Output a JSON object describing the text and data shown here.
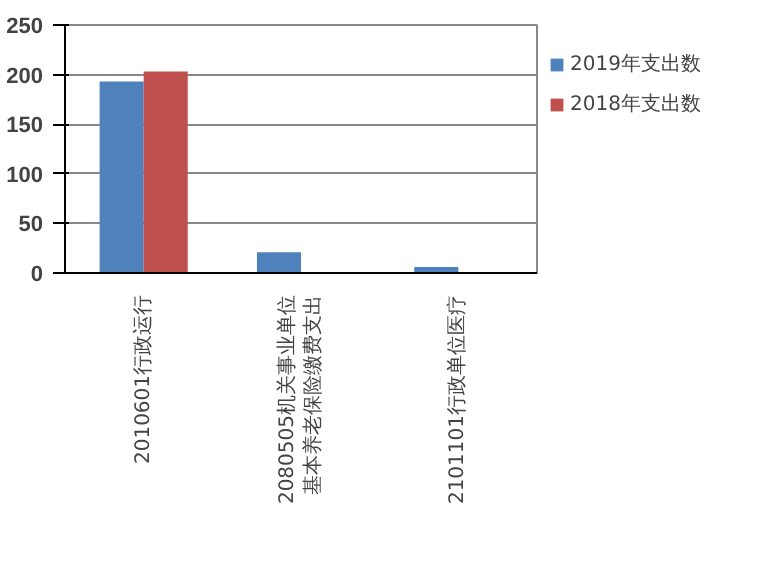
{
  "chart_data": {
    "type": "bar",
    "categories": [
      "2010601行政运行",
      "2080505机关事业单位基本养老保险缴费支出",
      "2101101行政单位医疗"
    ],
    "series": [
      {
        "name": "2019年支出数",
        "color": "#4f81bd",
        "values": [
          193,
          21,
          6
        ]
      },
      {
        "name": "2018年支出数",
        "color": "#c0504d",
        "values": [
          203,
          null,
          null
        ]
      }
    ],
    "ylim": [
      0,
      250
    ],
    "yticks": [
      0,
      50,
      100,
      150,
      200,
      250
    ],
    "grid": "y",
    "legend": "right"
  }
}
